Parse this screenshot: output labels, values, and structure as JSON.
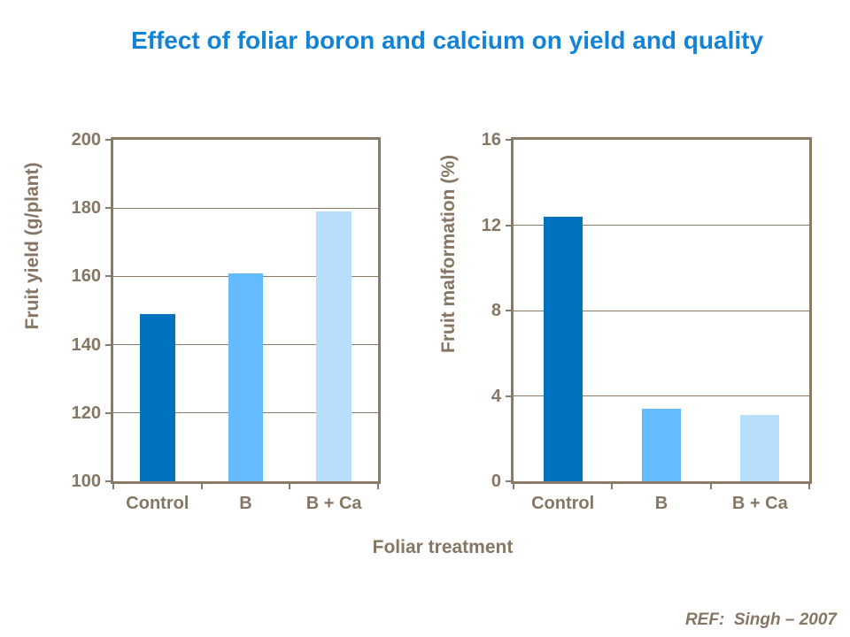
{
  "title": {
    "text": "Effect of foliar boron and calcium on yield and quality",
    "color": "#1283D6"
  },
  "theme": {
    "background": "#FFFFFF",
    "axis_line_color": "#8A7B67",
    "axis_text_color": "#867663"
  },
  "xlabel": "Foliar treatment",
  "footer": {
    "ref": "REF:  Singh – 2007"
  },
  "chart_data": [
    {
      "type": "bar",
      "title": "",
      "ylabel": "Fruit yield (g/plant)",
      "xlabel": "Foliar treatment",
      "categories": [
        "Control",
        "B",
        "B + Ca"
      ],
      "values": [
        149,
        161,
        179
      ],
      "ylim": [
        100,
        200
      ],
      "yticks": [
        100,
        120,
        140,
        160,
        180,
        200
      ],
      "grid": true,
      "legend": "none",
      "bar_colors": [
        "#0072BF",
        "#66BBFF",
        "#B7DFFB"
      ]
    },
    {
      "type": "bar",
      "title": "",
      "ylabel": "Fruit malformation (%)",
      "xlabel": "Foliar treatment",
      "categories": [
        "Control",
        "B",
        "B + Ca"
      ],
      "values": [
        12.4,
        3.4,
        3.1
      ],
      "ylim": [
        0,
        16
      ],
      "yticks": [
        0,
        4,
        8,
        12,
        16
      ],
      "grid": true,
      "legend": "none",
      "bar_colors": [
        "#0072BF",
        "#66BBFF",
        "#B7DFFB"
      ]
    }
  ]
}
